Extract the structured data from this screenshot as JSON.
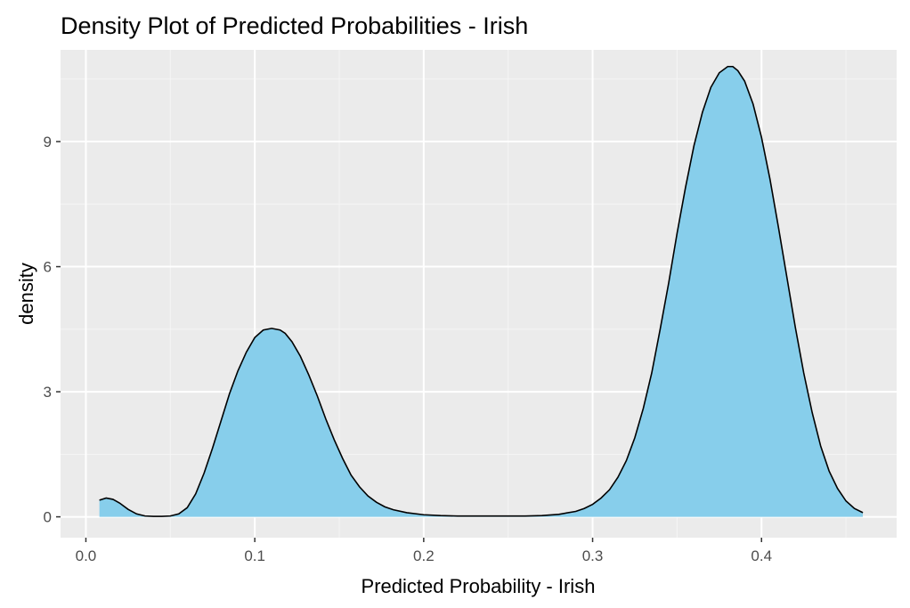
{
  "chart_data": {
    "type": "area",
    "title": "Density Plot of Predicted Probabilities - Irish",
    "xlabel": "Predicted Probability - Irish",
    "ylabel": "density",
    "xlim": [
      -0.015,
      0.48
    ],
    "ylim": [
      -0.5,
      11.2
    ],
    "x_ticks": [
      0.0,
      0.1,
      0.2,
      0.3,
      0.4
    ],
    "x_tick_labels": [
      "0.0",
      "0.1",
      "0.2",
      "0.3",
      "0.4"
    ],
    "y_ticks": [
      0,
      3,
      6,
      9
    ],
    "y_tick_labels": [
      "0",
      "3",
      "6",
      "9"
    ],
    "grid": true,
    "fill_color": "#87ceeb",
    "line_color": "#000000",
    "panel_background": "#ebebeb",
    "series": [
      {
        "x": [
          0.008,
          0.012,
          0.016,
          0.02,
          0.025,
          0.03,
          0.035,
          0.04,
          0.045,
          0.05,
          0.055,
          0.06,
          0.065,
          0.07,
          0.075,
          0.08,
          0.085,
          0.09,
          0.095,
          0.1,
          0.105,
          0.11,
          0.115,
          0.118,
          0.122,
          0.127,
          0.132,
          0.137,
          0.142,
          0.147,
          0.152,
          0.157,
          0.162,
          0.167,
          0.172,
          0.177,
          0.182,
          0.19,
          0.2,
          0.21,
          0.22,
          0.23,
          0.24,
          0.25,
          0.26,
          0.27,
          0.28,
          0.29,
          0.295,
          0.3,
          0.305,
          0.31,
          0.315,
          0.32,
          0.325,
          0.33,
          0.335,
          0.34,
          0.345,
          0.35,
          0.355,
          0.36,
          0.365,
          0.37,
          0.375,
          0.38,
          0.383,
          0.386,
          0.39,
          0.395,
          0.4,
          0.405,
          0.41,
          0.415,
          0.42,
          0.425,
          0.43,
          0.435,
          0.44,
          0.445,
          0.45,
          0.455,
          0.46
        ],
        "y": [
          0.4,
          0.45,
          0.42,
          0.33,
          0.18,
          0.07,
          0.02,
          0.01,
          0.01,
          0.02,
          0.07,
          0.22,
          0.55,
          1.05,
          1.65,
          2.3,
          2.95,
          3.5,
          3.95,
          4.3,
          4.48,
          4.52,
          4.48,
          4.4,
          4.2,
          3.85,
          3.4,
          2.9,
          2.35,
          1.85,
          1.4,
          1.0,
          0.72,
          0.5,
          0.35,
          0.24,
          0.17,
          0.1,
          0.05,
          0.03,
          0.02,
          0.02,
          0.02,
          0.02,
          0.02,
          0.03,
          0.06,
          0.13,
          0.2,
          0.3,
          0.45,
          0.65,
          0.95,
          1.35,
          1.9,
          2.6,
          3.45,
          4.5,
          5.6,
          6.8,
          7.9,
          8.9,
          9.7,
          10.3,
          10.65,
          10.8,
          10.8,
          10.7,
          10.45,
          9.9,
          9.1,
          8.1,
          6.95,
          5.75,
          4.55,
          3.45,
          2.5,
          1.7,
          1.1,
          0.68,
          0.38,
          0.2,
          0.1
        ]
      }
    ]
  }
}
